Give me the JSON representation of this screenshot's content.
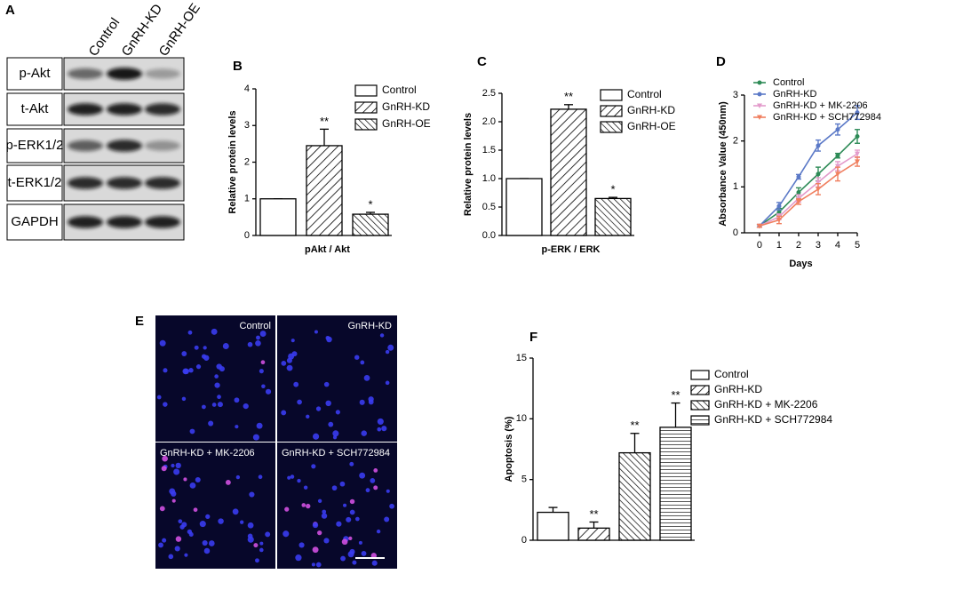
{
  "blot": {
    "panel": "A",
    "columns": [
      "Control",
      "GnRH-KD",
      "GnRH-OE"
    ],
    "rows": [
      "p-Akt",
      "t-Akt",
      "p-ERK1/2",
      "t-ERK1/2",
      "GAPDH"
    ]
  },
  "images": {
    "panel": "E",
    "tiles": [
      "Control",
      "GnRH-KD",
      "GnRH-KD + MK-2206",
      "GnRH-KD + SCH772984"
    ]
  },
  "chart_data": [
    {
      "type": "bar",
      "panel": "B",
      "xlabel": "pAkt / Akt",
      "ylabel": "Relative protein levels",
      "categories": [
        "Control",
        "GnRH-KD",
        "GnRH-OE"
      ],
      "values": [
        1,
        2.45,
        0.58
      ],
      "errors": [
        0,
        0.45,
        0.05
      ],
      "significance": [
        null,
        "**",
        "*"
      ],
      "hatch": [
        "none",
        "forward",
        "back"
      ],
      "ylim": [
        0,
        4
      ],
      "yticks": [
        0,
        1,
        2,
        3,
        4
      ]
    },
    {
      "type": "bar",
      "panel": "C",
      "xlabel": "p-ERK / ERK",
      "ylabel": "Relative protein levels",
      "categories": [
        "Control",
        "GnRH-KD",
        "GnRH-OE"
      ],
      "values": [
        1,
        2.22,
        0.65
      ],
      "errors": [
        0,
        0.08,
        0.02
      ],
      "significance": [
        null,
        "**",
        "*"
      ],
      "hatch": [
        "none",
        "forward",
        "back"
      ],
      "ylim": [
        0,
        2.5
      ],
      "yticks": [
        {
          "value": 0,
          "label": "0.0"
        },
        0.5,
        {
          "value": 1,
          "label": "1.0"
        },
        1.5,
        {
          "value": 2,
          "label": "2.0"
        },
        2.5
      ]
    },
    {
      "type": "line",
      "panel": "D",
      "xlabel": "Days",
      "ylabel": "Absorbance Value (450nm)",
      "x": [
        0,
        1,
        2,
        3,
        4,
        5
      ],
      "xlim": [
        -0.77,
        5
      ],
      "xticks": [
        0,
        1,
        2,
        3,
        4,
        5
      ],
      "ylim": [
        0,
        3
      ],
      "yticks": [
        0,
        1,
        2,
        3
      ],
      "series": [
        {
          "name": "Control",
          "color": "#2e8b57",
          "marker": "circle",
          "values": [
            0.15,
            0.45,
            0.88,
            1.28,
            1.68,
            2.1
          ],
          "errors": [
            0.03,
            0.08,
            0.1,
            0.15,
            0.05,
            0.15
          ]
        },
        {
          "name": "GnRH-KD",
          "color": "#5b79c7",
          "marker": "circle",
          "values": [
            0.15,
            0.58,
            1.22,
            1.9,
            2.25,
            2.62
          ],
          "errors": [
            0.03,
            0.08,
            0.05,
            0.12,
            0.12,
            0.15
          ]
        },
        {
          "name": "GnRH-KD + MK-2206",
          "color": "#e39bcb",
          "marker": "triangle",
          "values": [
            0.15,
            0.35,
            0.75,
            1.1,
            1.45,
            1.72
          ],
          "errors": [
            0.03,
            0.06,
            0.08,
            0.1,
            0.1,
            0.08
          ]
        },
        {
          "name": "GnRH-KD + SCH772984",
          "color": "#f07f5f",
          "marker": "triangle",
          "values": [
            0.15,
            0.28,
            0.68,
            0.95,
            1.28,
            1.55
          ],
          "errors": [
            0.03,
            0.08,
            0.06,
            0.12,
            0.15,
            0.1
          ]
        }
      ]
    },
    {
      "type": "bar",
      "panel": "F",
      "ylabel": "Apoptosis (%)",
      "categories": [
        "Control",
        "GnRH-KD",
        "GnRH-KD + MK-2206",
        "GnRH-KD + SCH772984"
      ],
      "values": [
        2.3,
        1.0,
        7.2,
        9.3
      ],
      "errors": [
        0.4,
        0.5,
        1.6,
        2.0
      ],
      "significance": [
        null,
        "**",
        "**",
        "**"
      ],
      "hatch": [
        "none",
        "forward",
        "back",
        "horizontal"
      ],
      "ylim": [
        0,
        15
      ],
      "yticks": [
        0,
        5,
        10,
        15
      ]
    }
  ]
}
